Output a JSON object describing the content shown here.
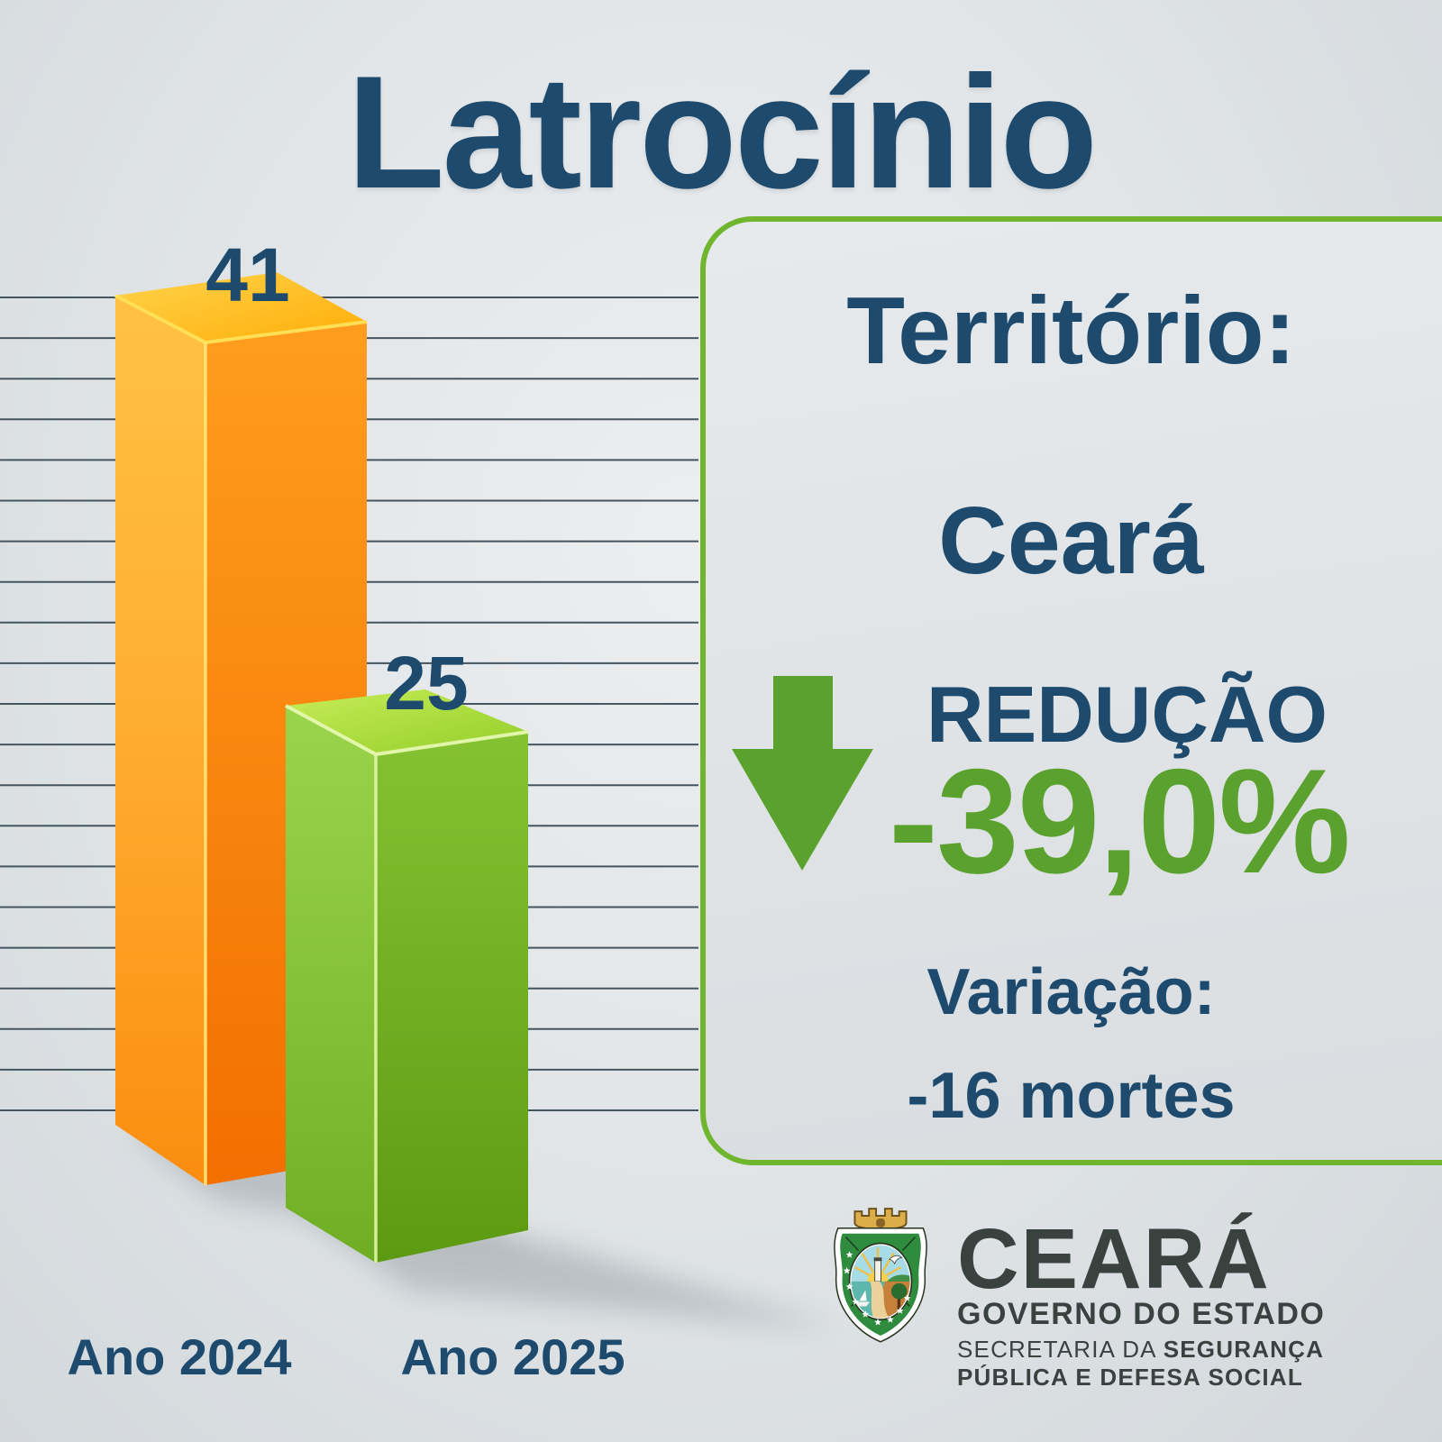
{
  "title": "Latrocínio",
  "chart_data": {
    "type": "bar",
    "title": "Latrocínio",
    "categories": [
      "Ano 2024",
      "Ano 2025"
    ],
    "values": [
      41,
      25
    ],
    "value_labels": [
      "41",
      "25"
    ],
    "bar_colors": [
      "#fb8d10",
      "#74b02a"
    ],
    "grid": true,
    "gridlines_horizontal": 21,
    "ylim": [
      0,
      42
    ],
    "legend_position": "none",
    "style": "3d-bars"
  },
  "panel": {
    "territory_label": "Território:",
    "territory_value": "Ceará",
    "reduction_label": "REDUÇÃO",
    "reduction_value": "-39,0%",
    "variation_label": "Variação:",
    "variation_value": "-16 mortes"
  },
  "footer": {
    "brand": "CEARÁ",
    "brand_subtitle": "GOVERNO DO ESTADO",
    "dept_line1_prefix": "SECRETARIA DA ",
    "dept_line1_bold": "SEGURANÇA",
    "dept_line2": "PÚBLICA E DEFESA SOCIAL"
  },
  "icons": {
    "arrow": "down-arrow-icon",
    "emblem": "ceara-coat-of-arms"
  },
  "colors": {
    "navy_text": "#1d4a6d",
    "green_accent": "#5aa12d",
    "panel_border": "#6fb52e",
    "orange_bar": "#fb8d10",
    "green_bar": "#74b02a",
    "logo_text": "#3a4240",
    "background": "#e2e6e8",
    "gridline": "#45555f"
  }
}
